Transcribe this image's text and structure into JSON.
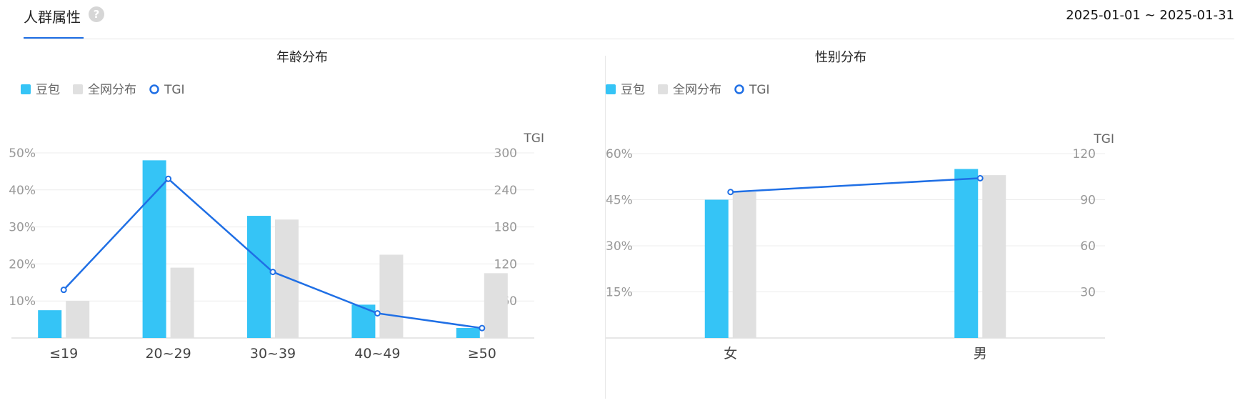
{
  "header": {
    "title": "人群属性",
    "help_icon": "question-circle-icon",
    "date_range": "2025-01-01 ~ 2025-01-31"
  },
  "colors": {
    "series_main": "#35c4f6",
    "series_base": "#e0e0e0",
    "tgi_line": "#1f6fe5",
    "tab_active": "#1f6fe5"
  },
  "chart_data": [
    {
      "id": "age",
      "type": "bar",
      "title": "年龄分布",
      "legend": [
        "豆包",
        "全网分布",
        "TGI"
      ],
      "legend_position": "top-left",
      "categories": [
        "≤19",
        "20~29",
        "30~39",
        "40~49",
        "≥50"
      ],
      "series": [
        {
          "name": "豆包",
          "type": "bar",
          "axis": "left",
          "values": [
            7.5,
            48,
            33,
            9,
            2.7
          ]
        },
        {
          "name": "全网分布",
          "type": "bar",
          "axis": "left",
          "values": [
            10,
            19,
            32,
            22.5,
            17.5
          ]
        },
        {
          "name": "TGI",
          "type": "line",
          "axis": "right",
          "values": [
            78,
            258,
            107,
            40,
            16
          ]
        }
      ],
      "y_left": {
        "ticks": [
          "10%",
          "20%",
          "30%",
          "40%",
          "50%"
        ],
        "tick_values": [
          10,
          20,
          30,
          40,
          50
        ],
        "ylim": [
          0,
          50
        ]
      },
      "y_right": {
        "label": "TGI",
        "ticks": [
          "60",
          "120",
          "180",
          "240",
          "300"
        ],
        "tick_values": [
          60,
          120,
          180,
          240,
          300
        ],
        "ylim": [
          0,
          300
        ]
      },
      "grid": true
    },
    {
      "id": "gender",
      "type": "bar",
      "title": "性别分布",
      "legend": [
        "豆包",
        "全网分布",
        "TGI"
      ],
      "legend_position": "top-left",
      "categories": [
        "女",
        "男"
      ],
      "series": [
        {
          "name": "豆包",
          "type": "bar",
          "axis": "left",
          "values": [
            45,
            55
          ]
        },
        {
          "name": "全网分布",
          "type": "bar",
          "axis": "left",
          "values": [
            47.5,
            53
          ]
        },
        {
          "name": "TGI",
          "type": "line",
          "axis": "right",
          "values": [
            95,
            104
          ]
        }
      ],
      "y_left": {
        "ticks": [
          "15%",
          "30%",
          "45%",
          "60%"
        ],
        "tick_values": [
          15,
          30,
          45,
          60
        ],
        "ylim": [
          0,
          60
        ]
      },
      "y_right": {
        "label": "TGI",
        "ticks": [
          "30",
          "60",
          "90",
          "120"
        ],
        "tick_values": [
          30,
          60,
          90,
          120
        ],
        "ylim": [
          0,
          120
        ]
      },
      "grid": true
    }
  ]
}
